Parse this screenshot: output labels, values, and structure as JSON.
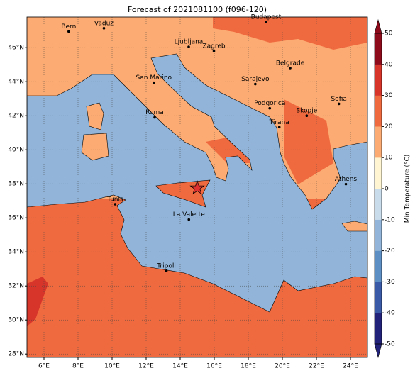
{
  "title": "Forecast of 2021081100 (f096-120)",
  "map": {
    "lon_range": [
      5,
      25
    ],
    "lat_range": [
      27.8,
      47.8
    ],
    "xticks": [
      {
        "value": 6,
        "label": "6°E"
      },
      {
        "value": 8,
        "label": "8°E"
      },
      {
        "value": 10,
        "label": "10°E"
      },
      {
        "value": 12,
        "label": "12°E"
      },
      {
        "value": 14,
        "label": "14°E"
      },
      {
        "value": 16,
        "label": "16°E"
      },
      {
        "value": 18,
        "label": "18°E"
      },
      {
        "value": 20,
        "label": "20°E"
      },
      {
        "value": 22,
        "label": "22°E"
      },
      {
        "value": 24,
        "label": "24°E"
      }
    ],
    "yticks": [
      {
        "value": 28,
        "label": "28°N"
      },
      {
        "value": 30,
        "label": "30°N"
      },
      {
        "value": 32,
        "label": "32°N"
      },
      {
        "value": 34,
        "label": "34°N"
      },
      {
        "value": 36,
        "label": "36°N"
      },
      {
        "value": 38,
        "label": "38°N"
      },
      {
        "value": 40,
        "label": "40°N"
      },
      {
        "value": 42,
        "label": "42°N"
      },
      {
        "value": 44,
        "label": "44°N"
      },
      {
        "value": 46,
        "label": "46°N"
      }
    ]
  },
  "cities": [
    {
      "name": "Bern",
      "lon": 7.45,
      "lat": 46.95
    },
    {
      "name": "Vaduz",
      "lon": 9.52,
      "lat": 47.14
    },
    {
      "name": "Budapest",
      "lon": 19.04,
      "lat": 47.5
    },
    {
      "name": "Ljubljana",
      "lon": 14.5,
      "lat": 46.05
    },
    {
      "name": "Zagreb",
      "lon": 15.98,
      "lat": 45.8
    },
    {
      "name": "Belgrade",
      "lon": 20.46,
      "lat": 44.8
    },
    {
      "name": "San Marino",
      "lon": 12.45,
      "lat": 43.94
    },
    {
      "name": "Sarajevo",
      "lon": 18.41,
      "lat": 43.86
    },
    {
      "name": "Sofia",
      "lon": 23.32,
      "lat": 42.7
    },
    {
      "name": "Roma",
      "lon": 12.5,
      "lat": 41.9
    },
    {
      "name": "Podgorica",
      "lon": 19.26,
      "lat": 42.44
    },
    {
      "name": "Skopje",
      "lon": 21.43,
      "lat": 42.0
    },
    {
      "name": "Tirana",
      "lon": 19.82,
      "lat": 41.33
    },
    {
      "name": "Athens",
      "lon": 23.73,
      "lat": 37.98
    },
    {
      "name": "Tunis",
      "lon": 10.18,
      "lat": 36.8
    },
    {
      "name": "La Valette",
      "lon": 14.51,
      "lat": 35.9
    },
    {
      "name": "Tripoli",
      "lon": 13.19,
      "lat": 32.89
    }
  ],
  "marker": {
    "lon": 15.0,
    "lat": 37.75,
    "color": "#e03030"
  },
  "colorbar": {
    "label": "Min Temperature (°C)",
    "ticks": [
      -50,
      -40,
      -30,
      -20,
      -10,
      0,
      10,
      20,
      30,
      40,
      50
    ],
    "colors": [
      "#22227a",
      "#3a5aa8",
      "#5e8fc4",
      "#91b4d8",
      "#c8dcec",
      "#fff5d2",
      "#fcab72",
      "#f06a3f",
      "#d7352a",
      "#8e0b1c"
    ]
  }
}
